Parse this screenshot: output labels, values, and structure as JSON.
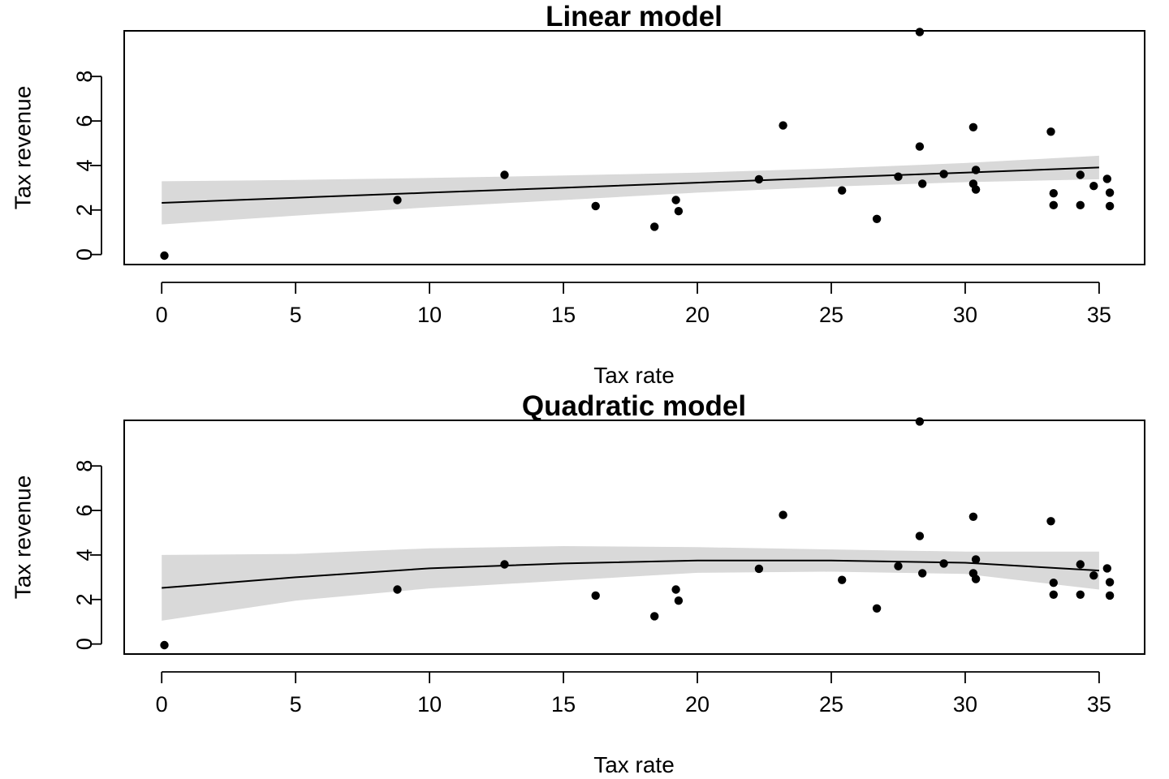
{
  "chart_data": [
    {
      "type": "scatter",
      "title": "Linear model",
      "xlabel": "Tax rate",
      "ylabel": "Tax revenue",
      "xlim": [
        -1.4,
        36.7
      ],
      "ylim": [
        -0.45,
        10.05
      ],
      "xticks": [
        0,
        5,
        10,
        15,
        20,
        25,
        30,
        35
      ],
      "yticks": [
        0,
        2,
        4,
        6,
        8
      ],
      "grid": false,
      "points": {
        "x": [
          0.1,
          8.8,
          12.8,
          16.2,
          18.4,
          19.2,
          19.3,
          22.3,
          23.2,
          25.4,
          26.7,
          27.5,
          28.3,
          28.3,
          28.4,
          29.2,
          30.3,
          30.3,
          30.4,
          30.4,
          33.2,
          33.3,
          33.3,
          34.3,
          34.3,
          34.8,
          35.3,
          35.4,
          35.4
        ],
        "y": [
          -0.05,
          2.45,
          3.58,
          2.18,
          1.25,
          2.45,
          1.95,
          3.38,
          5.8,
          2.88,
          1.6,
          3.5,
          10.0,
          4.85,
          3.18,
          3.62,
          5.72,
          3.18,
          3.8,
          2.92,
          5.52,
          2.75,
          2.22,
          3.58,
          2.22,
          3.08,
          3.4,
          2.78,
          2.18
        ]
      },
      "fit": {
        "x": [
          0,
          5,
          10,
          15,
          20,
          25,
          30,
          35
        ],
        "y": [
          2.32,
          2.55,
          2.78,
          3.0,
          3.23,
          3.46,
          3.68,
          3.91
        ],
        "lower": [
          1.35,
          1.75,
          2.12,
          2.45,
          2.78,
          3.05,
          3.25,
          3.38
        ],
        "upper": [
          3.29,
          3.35,
          3.44,
          3.55,
          3.68,
          3.87,
          4.11,
          4.44
        ]
      }
    },
    {
      "type": "scatter",
      "title": "Quadratic model",
      "xlabel": "Tax rate",
      "ylabel": "Tax revenue",
      "xlim": [
        -1.4,
        36.7
      ],
      "ylim": [
        -0.45,
        10.05
      ],
      "xticks": [
        0,
        5,
        10,
        15,
        20,
        25,
        30,
        35
      ],
      "yticks": [
        0,
        2,
        4,
        6,
        8
      ],
      "grid": false,
      "points": {
        "x": [
          0.1,
          8.8,
          12.8,
          16.2,
          18.4,
          19.2,
          19.3,
          22.3,
          23.2,
          25.4,
          26.7,
          27.5,
          28.3,
          28.3,
          28.4,
          29.2,
          30.3,
          30.3,
          30.4,
          30.4,
          33.2,
          33.3,
          33.3,
          34.3,
          34.3,
          34.8,
          35.3,
          35.4,
          35.4
        ],
        "y": [
          -0.05,
          2.45,
          3.58,
          2.18,
          1.25,
          2.45,
          1.95,
          3.38,
          5.8,
          2.88,
          1.6,
          3.5,
          10.0,
          4.85,
          3.18,
          3.62,
          5.72,
          3.18,
          3.8,
          2.92,
          5.52,
          2.75,
          2.22,
          3.58,
          2.22,
          3.08,
          3.4,
          2.78,
          2.18
        ]
      },
      "fit": {
        "x": [
          0,
          5,
          10,
          15,
          20,
          25,
          30,
          35
        ],
        "y": [
          2.52,
          3.0,
          3.4,
          3.62,
          3.75,
          3.75,
          3.65,
          3.3
        ],
        "lower": [
          1.05,
          1.95,
          2.5,
          2.85,
          3.2,
          3.25,
          3.15,
          2.45
        ],
        "upper": [
          4.0,
          4.05,
          4.3,
          4.4,
          4.35,
          4.25,
          4.15,
          4.15
        ]
      }
    }
  ]
}
